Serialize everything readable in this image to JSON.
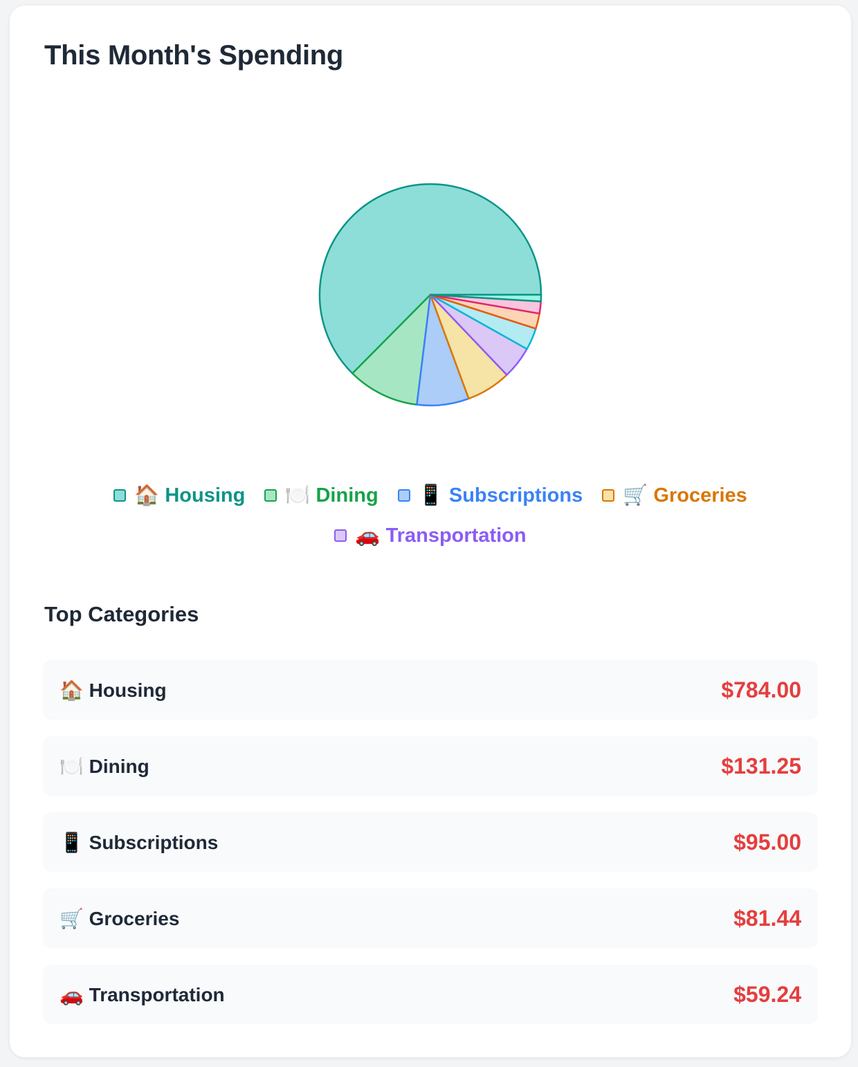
{
  "page": {
    "title": "This Month's Spending",
    "top_categories_title": "Top Categories"
  },
  "legend": [
    {
      "label": "🏠 Housing",
      "color": "#0d9488",
      "fill": "#8dded8"
    },
    {
      "label": "🍽️ Dining",
      "color": "#16a34a",
      "fill": "#a7e6c3"
    },
    {
      "label": "📱 Subscriptions",
      "color": "#3b82f6",
      "fill": "#abcdf7"
    },
    {
      "label": "🛒 Groceries",
      "color": "#d97706",
      "fill": "#f6e3a6"
    },
    {
      "label": "🚗 Transportation",
      "color": "#8b5cf6",
      "fill": "#dcc8f6"
    }
  ],
  "chart_data": {
    "type": "pie",
    "title": "",
    "slices": [
      {
        "label": "🏠 Housing",
        "value": 784.0,
        "fill": "#8dded8",
        "stroke": "#0d9488"
      },
      {
        "label": "🍽️ Dining",
        "value": 131.25,
        "fill": "#a7e6c3",
        "stroke": "#16a34a"
      },
      {
        "label": "📱 Subscriptions",
        "value": 95.0,
        "fill": "#abcdf7",
        "stroke": "#3b82f6"
      },
      {
        "label": "🛒 Groceries",
        "value": 81.44,
        "fill": "#f6e3a6",
        "stroke": "#d97706"
      },
      {
        "label": "🚗 Transportation",
        "value": 59.24,
        "fill": "#dcc8f6",
        "stroke": "#8b5cf6"
      },
      {
        "label": "",
        "value": 40,
        "fill": "#b2ebf2",
        "stroke": "#06b6d4"
      },
      {
        "label": "",
        "value": 28,
        "fill": "#fbd5b5",
        "stroke": "#ea580c"
      },
      {
        "label": "",
        "value": 22,
        "fill": "#f9c5dc",
        "stroke": "#db2777"
      },
      {
        "label": "",
        "value": 12,
        "fill": "#99f6e4",
        "stroke": "#0d9488"
      }
    ],
    "legend_position": "bottom"
  },
  "categories": [
    {
      "name": "🏠 Housing",
      "amount": "$784.00"
    },
    {
      "name": "🍽️ Dining",
      "amount": "$131.25"
    },
    {
      "name": "📱 Subscriptions",
      "amount": "$95.00"
    },
    {
      "name": "🛒 Groceries",
      "amount": "$81.44"
    },
    {
      "name": "🚗 Transportation",
      "amount": "$59.24"
    }
  ]
}
